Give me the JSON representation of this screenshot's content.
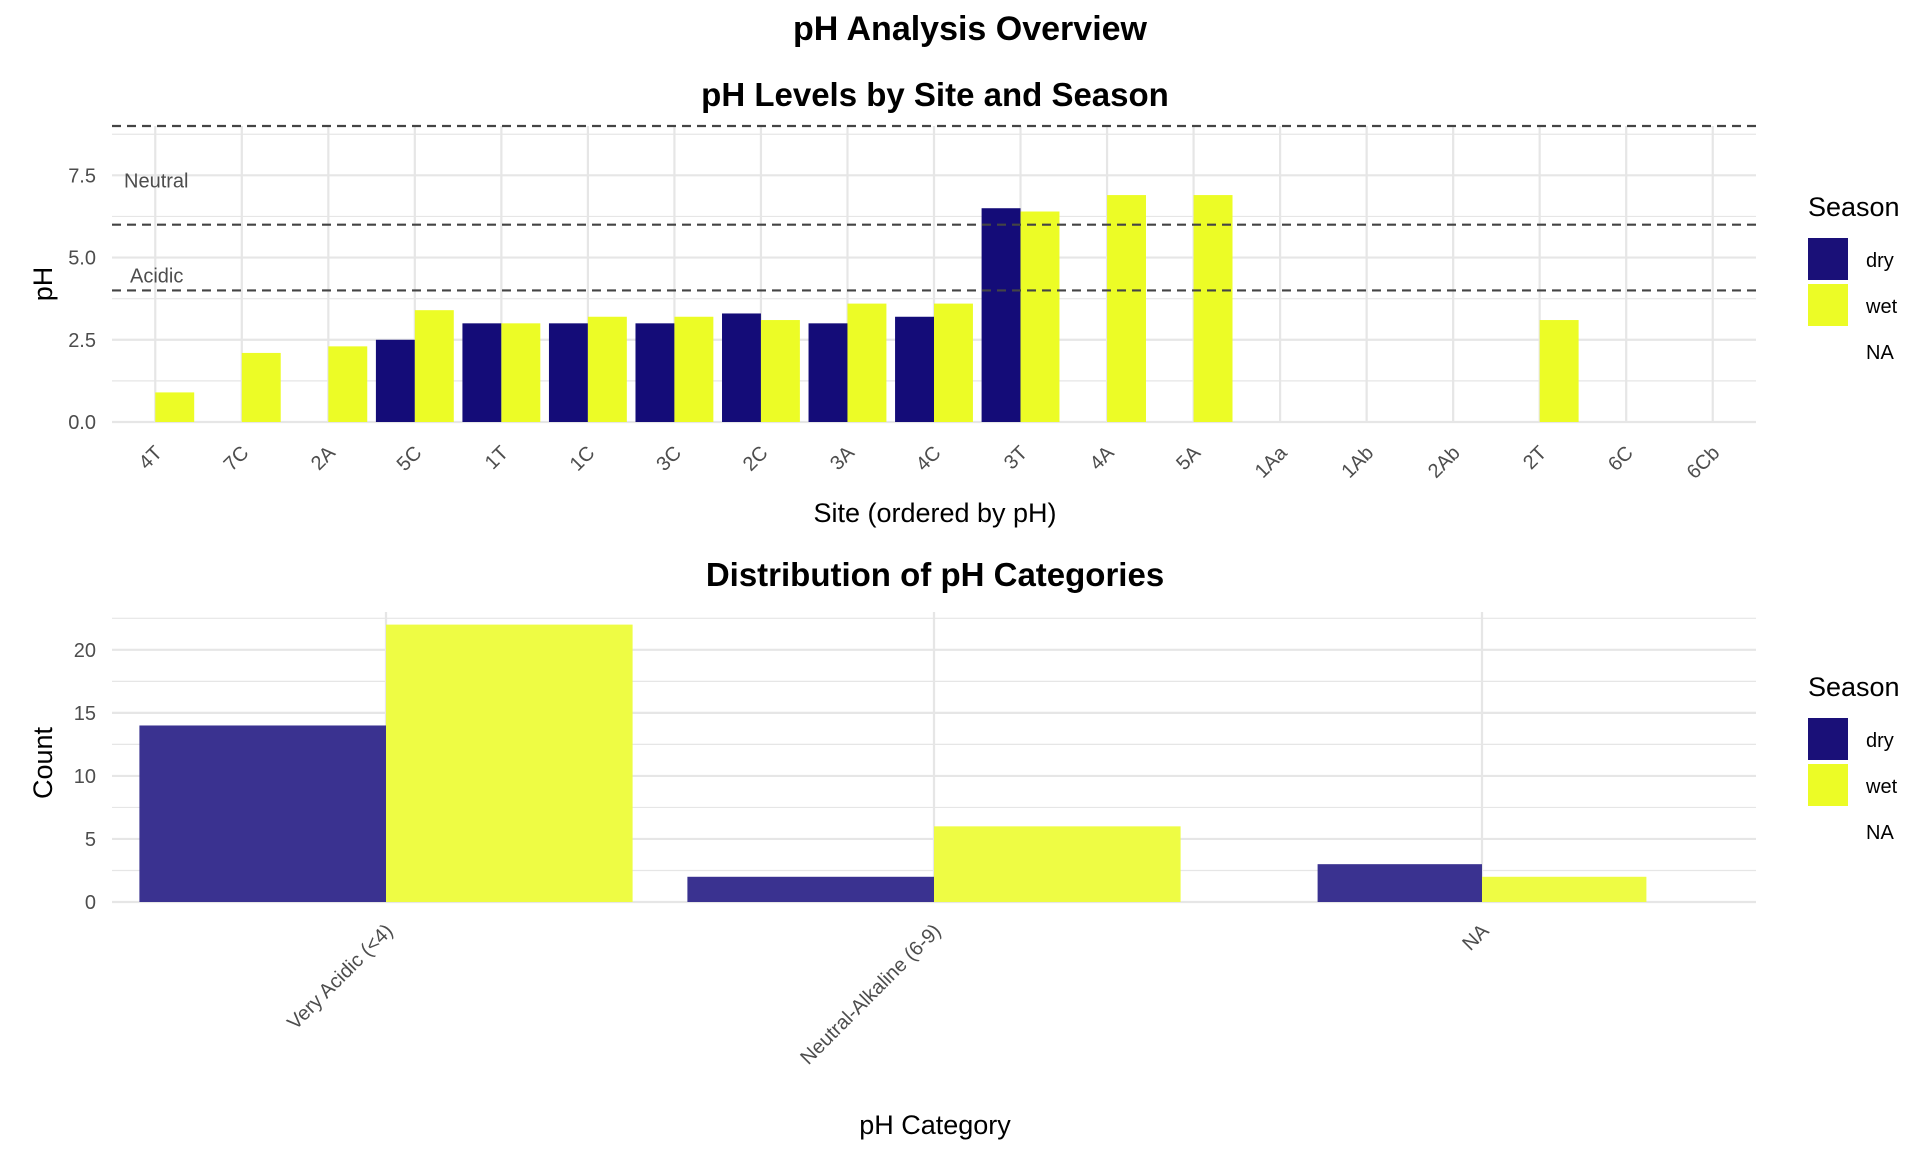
{
  "figure_title": "pH Analysis Overview",
  "legend": {
    "title": "Season",
    "entries": [
      {
        "label": "dry",
        "color": "#1a1078"
      },
      {
        "label": "wet",
        "color": "#ecfc26"
      },
      {
        "label": "NA",
        "color": ""
      }
    ]
  },
  "colors": {
    "dry": "#140c78",
    "wet": "#ecfc26",
    "dry_light": "#3a3290",
    "wet_light": "#eefc44",
    "grid": "#e6e6e6",
    "threshold": "#444444"
  },
  "chart_data": [
    {
      "type": "bar",
      "title": "pH Levels by Site and Season",
      "xlabel": "Site (ordered by pH)",
      "ylabel": "pH",
      "ylim": [
        0,
        9
      ],
      "yticks": [
        "0.0",
        "2.5",
        "5.0",
        "7.5"
      ],
      "grid": true,
      "legend_position": "right",
      "categories": [
        "4T",
        "7C",
        "2A",
        "5C",
        "1T",
        "1C",
        "3C",
        "2C",
        "3A",
        "4C",
        "3T",
        "4A",
        "5A",
        "1Aa",
        "1Ab",
        "2Ab",
        "2T",
        "6C",
        "6Cb"
      ],
      "series": [
        {
          "name": "dry",
          "values": [
            null,
            null,
            null,
            2.5,
            3.0,
            3.0,
            3.0,
            3.3,
            3.0,
            3.2,
            6.5,
            null,
            null,
            null,
            null,
            null,
            null,
            null,
            null
          ]
        },
        {
          "name": "wet",
          "values": [
            0.9,
            2.1,
            2.3,
            3.4,
            3.0,
            3.2,
            3.2,
            3.1,
            3.6,
            3.6,
            6.4,
            6.9,
            6.9,
            null,
            null,
            null,
            3.1,
            null,
            null
          ]
        }
      ],
      "reference_lines": [
        {
          "y": 4,
          "label": "Acidic"
        },
        {
          "y": 6,
          "label": "Neutral"
        },
        {
          "y": 9,
          "label": ""
        }
      ]
    },
    {
      "type": "bar",
      "title": "Distribution of pH Categories",
      "xlabel": "pH Category",
      "ylabel": "Count",
      "ylim": [
        0,
        23
      ],
      "yticks": [
        "0",
        "5",
        "10",
        "15",
        "20"
      ],
      "grid": true,
      "legend_position": "right",
      "categories": [
        "Very Acidic (<4)",
        "Neutral-Alkaline (6-9)",
        "NA"
      ],
      "series": [
        {
          "name": "dry",
          "values": [
            14,
            2,
            3
          ]
        },
        {
          "name": "wet",
          "values": [
            22,
            6,
            2
          ]
        }
      ]
    }
  ]
}
